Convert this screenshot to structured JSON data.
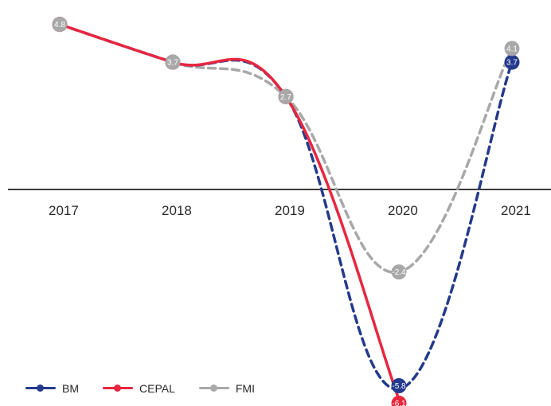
{
  "chart_data": {
    "type": "line",
    "x": [
      "2017",
      "2018",
      "2019",
      "2020",
      "2021"
    ],
    "ylim": [
      -6.5,
      5.5
    ],
    "grid": false,
    "legend_position": "bottom-left",
    "series": [
      {
        "name": "BM",
        "color": "#243a8c",
        "dash": true,
        "points": [
          [
            0,
            4.8
          ],
          [
            1,
            3.7
          ],
          [
            2,
            2.7
          ],
          [
            3,
            -5.8
          ],
          [
            4,
            3.7
          ]
        ],
        "labels": [
          "",
          "",
          "",
          "-5.8",
          "3.7"
        ]
      },
      {
        "name": "CEPAL",
        "color": "#e8263f",
        "dash": false,
        "points": [
          [
            0,
            4.8
          ],
          [
            1,
            3.7
          ],
          [
            2,
            2.7
          ],
          [
            3,
            -6.1
          ]
        ],
        "labels": [
          "",
          "",
          "",
          "-6.1"
        ]
      },
      {
        "name": "FMI",
        "color": "#a8a8a8",
        "dash": true,
        "points": [
          [
            0,
            4.8
          ],
          [
            1,
            3.7
          ],
          [
            2,
            2.7
          ],
          [
            3,
            -2.4
          ],
          [
            4,
            4.1
          ]
        ],
        "labels": [
          "4.8",
          "3.7",
          "2.7",
          "-2.4",
          "4.1"
        ]
      }
    ]
  },
  "legend": [
    {
      "label": "BM",
      "color": "#243a8c"
    },
    {
      "label": "CEPAL",
      "color": "#e8263f"
    },
    {
      "label": "FMI",
      "color": "#a8a8a8"
    }
  ]
}
